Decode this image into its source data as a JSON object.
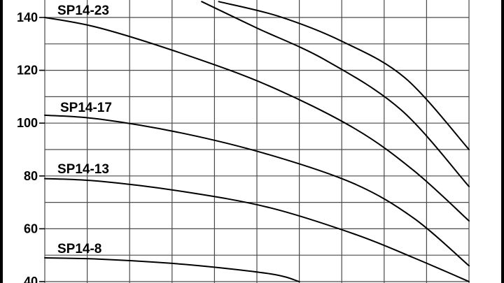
{
  "chart_data": {
    "type": "line",
    "title": "",
    "xlabel": "",
    "ylabel": "",
    "grid": true,
    "ylim": [
      40,
      145
    ],
    "y_ticks": [
      40,
      60,
      80,
      100,
      120,
      140
    ],
    "y_tick_labels": [
      "40",
      "60",
      "80",
      "100",
      "120",
      "140"
    ],
    "x_gridlines": 10,
    "series": [
      {
        "name": "",
        "points": [
          [
            0.41,
            146.0
          ],
          [
            0.55,
            140.5
          ],
          [
            0.7,
            131.0
          ],
          [
            0.85,
            117.0
          ],
          [
            1.0,
            90.0
          ]
        ]
      },
      {
        "name": "",
        "points": [
          [
            0.37,
            146.0
          ],
          [
            0.5,
            136.0
          ],
          [
            0.66,
            124.0
          ],
          [
            0.84,
            105.0
          ],
          [
            1.0,
            76.0
          ]
        ]
      },
      {
        "name": "SP14-23",
        "points": [
          [
            0.0,
            140.0
          ],
          [
            0.13,
            136.0
          ],
          [
            0.33,
            126.0
          ],
          [
            0.53,
            114.0
          ],
          [
            0.73,
            98.0
          ],
          [
            0.87,
            82.0
          ],
          [
            1.0,
            63.0
          ]
        ]
      },
      {
        "name": "SP14-17",
        "points": [
          [
            0.0,
            103.0
          ],
          [
            0.13,
            101.5
          ],
          [
            0.33,
            96.0
          ],
          [
            0.53,
            88.0
          ],
          [
            0.73,
            77.0
          ],
          [
            0.87,
            64.0
          ],
          [
            1.0,
            46.0
          ]
        ]
      },
      {
        "name": "SP14-13",
        "points": [
          [
            0.0,
            79.0
          ],
          [
            0.13,
            78.0
          ],
          [
            0.33,
            74.0
          ],
          [
            0.53,
            68.0
          ],
          [
            0.73,
            58.0
          ],
          [
            0.87,
            49.0
          ],
          [
            1.0,
            40.0
          ]
        ]
      },
      {
        "name": "SP14-8",
        "points": [
          [
            0.0,
            49.0
          ],
          [
            0.13,
            48.5
          ],
          [
            0.33,
            46.5
          ],
          [
            0.53,
            43.0
          ],
          [
            0.6,
            40.0
          ]
        ]
      }
    ]
  }
}
